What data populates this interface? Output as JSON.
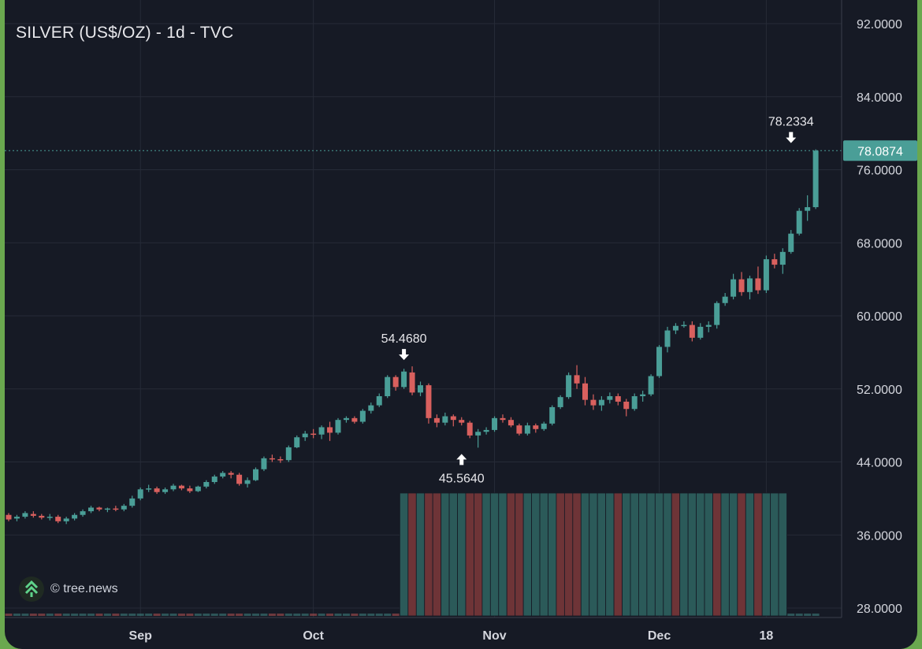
{
  "title": "SILVER (US$/OZ) - 1d - TVC",
  "watermark": "© tree.news",
  "colors": {
    "background": "#161a25",
    "up": "#4a9e97",
    "down": "#d9605e",
    "grid": "#262b37",
    "last_price_line": "#4a9e97",
    "frame": "#6aa84f"
  },
  "chart_data": {
    "type": "candlestick",
    "y_axis": {
      "min": 28,
      "max": 92,
      "ticks": [
        92,
        84,
        76,
        68,
        60,
        52,
        44,
        36,
        28
      ],
      "tick_labels": [
        "92.0000",
        "84.0000",
        "76.0000",
        "68.0000",
        "60.0000",
        "52.0000",
        "44.0000",
        "36.0000",
        "28.0000"
      ],
      "position": "right"
    },
    "x_axis": {
      "labels": [
        "Sep",
        "Oct",
        "Nov",
        "Dec",
        "18"
      ],
      "label_bar_index": [
        16,
        37,
        59,
        79,
        92
      ]
    },
    "grid": true,
    "last_price": {
      "value": 78.0874,
      "label": "78.0874"
    },
    "annotations": [
      {
        "label": "54.4680",
        "value": 54.468,
        "bar_index": 48,
        "type": "high"
      },
      {
        "label": "45.5640",
        "value": 45.564,
        "bar_index": 55,
        "type": "low"
      },
      {
        "label": "78.2334",
        "value": 78.2334,
        "bar_index": 95,
        "type": "high"
      }
    ],
    "candles": [
      [
        38.2,
        38.4,
        37.5,
        37.7
      ],
      [
        37.8,
        38.2,
        37.5,
        38.0
      ],
      [
        38.0,
        38.6,
        37.8,
        38.4
      ],
      [
        38.3,
        38.6,
        37.9,
        38.1
      ],
      [
        38.1,
        38.3,
        37.7,
        37.9
      ],
      [
        37.9,
        38.3,
        37.6,
        38.0
      ],
      [
        38.0,
        38.2,
        37.3,
        37.5
      ],
      [
        37.5,
        38.0,
        37.2,
        37.8
      ],
      [
        37.8,
        38.4,
        37.6,
        38.2
      ],
      [
        38.2,
        38.8,
        38.0,
        38.6
      ],
      [
        38.6,
        39.2,
        38.4,
        39.0
      ],
      [
        39.0,
        39.1,
        38.6,
        38.8
      ],
      [
        38.8,
        39.0,
        38.5,
        38.9
      ],
      [
        38.9,
        39.2,
        38.6,
        38.8
      ],
      [
        38.8,
        39.4,
        38.6,
        39.2
      ],
      [
        39.2,
        40.3,
        39.0,
        40.0
      ],
      [
        40.0,
        41.2,
        39.8,
        41.0
      ],
      [
        41.0,
        41.5,
        40.7,
        41.1
      ],
      [
        41.1,
        41.3,
        40.5,
        40.7
      ],
      [
        40.7,
        41.2,
        40.5,
        41.0
      ],
      [
        41.0,
        41.6,
        40.8,
        41.4
      ],
      [
        41.4,
        41.5,
        40.9,
        41.1
      ],
      [
        41.1,
        41.4,
        40.6,
        40.8
      ],
      [
        40.8,
        41.4,
        40.7,
        41.3
      ],
      [
        41.3,
        42.0,
        41.1,
        41.8
      ],
      [
        41.8,
        42.6,
        41.6,
        42.4
      ],
      [
        42.4,
        43.0,
        42.2,
        42.8
      ],
      [
        42.8,
        43.0,
        42.2,
        42.6
      ],
      [
        42.6,
        42.8,
        41.4,
        41.6
      ],
      [
        41.6,
        42.3,
        41.2,
        42.0
      ],
      [
        42.0,
        43.4,
        41.9,
        43.2
      ],
      [
        43.2,
        44.6,
        43.0,
        44.4
      ],
      [
        44.4,
        44.8,
        44.0,
        44.3
      ],
      [
        44.3,
        44.6,
        43.9,
        44.2
      ],
      [
        44.2,
        45.8,
        44.0,
        45.6
      ],
      [
        45.6,
        46.9,
        45.5,
        46.7
      ],
      [
        46.7,
        47.4,
        46.3,
        47.1
      ],
      [
        47.1,
        47.6,
        46.6,
        47.0
      ],
      [
        47.0,
        48.0,
        46.5,
        47.8
      ],
      [
        47.8,
        48.4,
        46.3,
        47.2
      ],
      [
        47.2,
        48.8,
        47.0,
        48.6
      ],
      [
        48.6,
        49.0,
        48.3,
        48.8
      ],
      [
        48.8,
        49.0,
        48.2,
        48.4
      ],
      [
        48.4,
        49.8,
        48.2,
        49.6
      ],
      [
        49.6,
        50.5,
        49.3,
        50.2
      ],
      [
        50.2,
        51.5,
        50.0,
        51.2
      ],
      [
        51.2,
        53.5,
        51.0,
        53.3
      ],
      [
        53.3,
        53.5,
        51.8,
        52.2
      ],
      [
        52.2,
        54.2,
        52.0,
        53.9
      ],
      [
        53.8,
        54.468,
        51.3,
        51.6
      ],
      [
        51.6,
        52.8,
        51.2,
        52.4
      ],
      [
        52.4,
        52.6,
        48.2,
        48.8
      ],
      [
        48.8,
        49.2,
        47.8,
        48.3
      ],
      [
        48.3,
        49.4,
        48.0,
        49.0
      ],
      [
        49.0,
        49.2,
        47.9,
        48.6
      ],
      [
        48.6,
        48.9,
        48.0,
        48.3
      ],
      [
        48.3,
        48.5,
        46.6,
        46.9
      ],
      [
        46.9,
        47.6,
        45.564,
        47.3
      ],
      [
        47.3,
        47.8,
        47.0,
        47.5
      ],
      [
        47.5,
        49.0,
        47.3,
        48.8
      ],
      [
        48.8,
        49.2,
        48.3,
        48.6
      ],
      [
        48.6,
        48.9,
        47.8,
        48.0
      ],
      [
        48.0,
        48.2,
        46.9,
        47.1
      ],
      [
        47.1,
        48.3,
        46.9,
        48.0
      ],
      [
        48.0,
        48.2,
        47.2,
        47.6
      ],
      [
        47.6,
        48.4,
        47.4,
        48.2
      ],
      [
        48.2,
        50.2,
        48.0,
        50.0
      ],
      [
        50.0,
        51.3,
        49.8,
        51.1
      ],
      [
        51.1,
        53.8,
        50.9,
        53.5
      ],
      [
        53.5,
        54.6,
        52.0,
        52.6
      ],
      [
        52.6,
        53.3,
        50.2,
        50.8
      ],
      [
        50.8,
        51.4,
        49.7,
        50.2
      ],
      [
        50.2,
        51.2,
        49.6,
        50.8
      ],
      [
        50.8,
        51.6,
        50.4,
        51.2
      ],
      [
        51.2,
        51.5,
        50.2,
        50.6
      ],
      [
        50.6,
        50.9,
        49.0,
        49.8
      ],
      [
        49.8,
        51.5,
        49.6,
        51.2
      ],
      [
        51.2,
        51.8,
        50.6,
        51.4
      ],
      [
        51.4,
        53.6,
        51.2,
        53.4
      ],
      [
        53.4,
        56.8,
        53.2,
        56.6
      ],
      [
        56.6,
        58.8,
        56.0,
        58.4
      ],
      [
        58.4,
        59.2,
        58.0,
        58.9
      ],
      [
        58.9,
        59.4,
        58.7,
        59.0
      ],
      [
        59.0,
        59.4,
        57.2,
        57.6
      ],
      [
        57.6,
        59.2,
        57.4,
        58.8
      ],
      [
        58.8,
        59.4,
        58.2,
        59.0
      ],
      [
        59.0,
        61.6,
        58.6,
        61.4
      ],
      [
        61.4,
        62.5,
        61.1,
        62.1
      ],
      [
        62.1,
        64.6,
        61.8,
        64.0
      ],
      [
        64.0,
        64.8,
        62.2,
        62.6
      ],
      [
        62.6,
        64.4,
        61.8,
        64.1
      ],
      [
        64.1,
        65.4,
        62.4,
        62.8
      ],
      [
        62.8,
        66.6,
        62.5,
        66.2
      ],
      [
        66.2,
        66.8,
        65.2,
        65.6
      ],
      [
        65.6,
        67.4,
        64.6,
        67.0
      ],
      [
        67.0,
        69.4,
        66.8,
        69.0
      ],
      [
        69.0,
        71.8,
        68.8,
        71.5
      ],
      [
        71.5,
        73.2,
        70.4,
        71.9
      ],
      [
        71.9,
        78.2334,
        71.7,
        78.0874
      ]
    ],
    "volume": {
      "start_bar": 48,
      "bars": [
        1,
        -1,
        1,
        -1,
        -1,
        1,
        1,
        1,
        -1,
        -1,
        1,
        1,
        1,
        -1,
        -1,
        1,
        1,
        1,
        1,
        -1,
        -1,
        -1,
        1,
        1,
        1,
        1,
        -1,
        1,
        1,
        1,
        1,
        1,
        1,
        -1,
        1,
        1,
        1,
        1,
        -1,
        1,
        1,
        -1,
        1,
        -1,
        1,
        1,
        1
      ]
    }
  }
}
